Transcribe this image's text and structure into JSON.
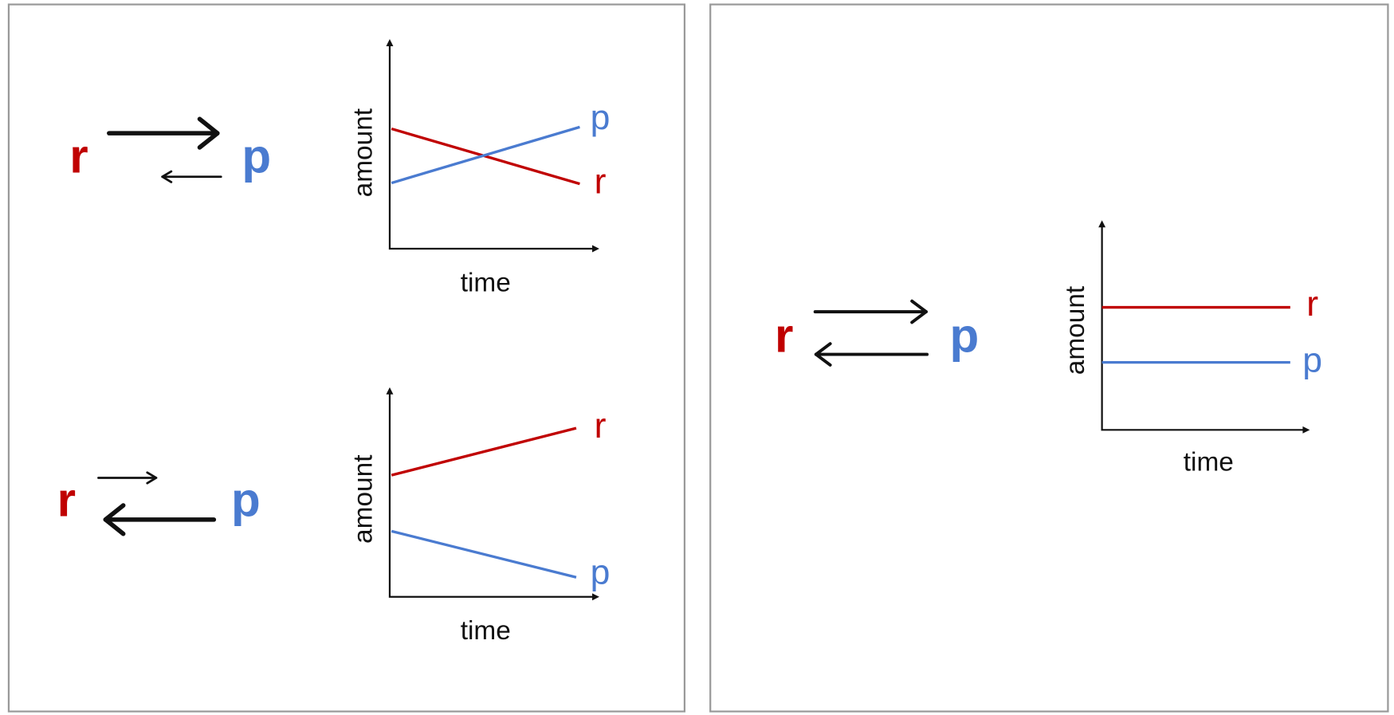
{
  "panels": [
    {
      "reaction": {
        "reactant": "r",
        "product": "p"
      },
      "graph": {
        "y_label": "amount",
        "x_label": "time",
        "lines": [
          {
            "label": "p"
          },
          {
            "label": "r"
          }
        ]
      }
    },
    {
      "reaction": {
        "reactant": "r",
        "product": "p"
      },
      "graph": {
        "y_label": "amount",
        "x_label": "time",
        "lines": [
          {
            "label": "r"
          },
          {
            "label": "p"
          }
        ]
      }
    },
    {
      "reaction": {
        "reactant": "r",
        "product": "p"
      },
      "graph": {
        "y_label": "amount",
        "x_label": "time",
        "lines": [
          {
            "label": "r"
          },
          {
            "label": "p"
          }
        ]
      }
    }
  ]
}
